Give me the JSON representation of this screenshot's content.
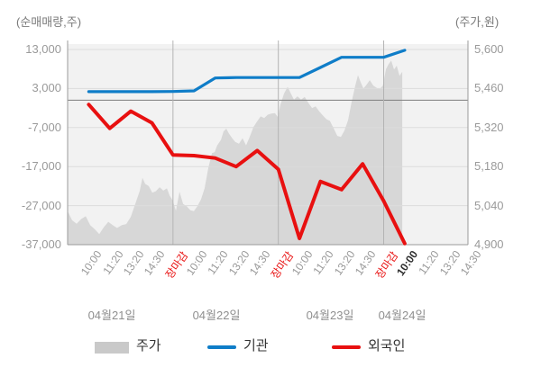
{
  "chart_data": {
    "type": "mixed",
    "title": "",
    "left_axis": {
      "title": "(순매매량,주)",
      "unit": "주",
      "range": [
        -37000,
        13000
      ],
      "ticks": [
        13000,
        3000,
        -7000,
        -17000,
        -27000,
        -37000
      ],
      "tick_labels": [
        "13,000",
        "3,000",
        "-7,000",
        "-17,000",
        "-27,000",
        "-37,000"
      ],
      "zero_line": 0
    },
    "right_axis": {
      "title": "(주가,원)",
      "unit": "원",
      "range": [
        4900,
        5600
      ],
      "ticks": [
        5600,
        5460,
        5320,
        5180,
        5040,
        4900
      ],
      "tick_labels": [
        "5,600",
        "5,460",
        "5,320",
        "5,180",
        "5,040",
        "4,900"
      ]
    },
    "x_axis": {
      "close_label": "장마감",
      "current_time": {
        "day_index": 3,
        "time_index": 0
      },
      "days": [
        {
          "date": "04월21일",
          "times": [
            "10:00",
            "11:20",
            "13:20",
            "14:30",
            "장마감"
          ]
        },
        {
          "date": "04월22일",
          "times": [
            "10:00",
            "11:20",
            "13:20",
            "14:30",
            "장마감"
          ]
        },
        {
          "date": "04월23일",
          "times": [
            "10:00",
            "11:20",
            "13:20",
            "14:30",
            "장마감"
          ]
        },
        {
          "date": "04월24일",
          "times": [
            "10:00",
            "11:20",
            "13:20",
            "14:30"
          ]
        }
      ]
    },
    "series": [
      {
        "name": "주가",
        "type": "area",
        "axis": "right",
        "color": "#d7d7d7",
        "points": [
          [
            0,
            5020
          ],
          [
            0.21,
            4988
          ],
          [
            0.43,
            4975
          ],
          [
            0.64,
            4992
          ],
          [
            0.86,
            5002
          ],
          [
            1.07,
            4970
          ],
          [
            1.28,
            4956
          ],
          [
            1.5,
            4938
          ],
          [
            1.71,
            4962
          ],
          [
            1.93,
            4982
          ],
          [
            2.14,
            4970
          ],
          [
            2.35,
            4960
          ],
          [
            2.57,
            4970
          ],
          [
            2.78,
            4974
          ],
          [
            3,
            5000
          ],
          [
            3.21,
            5046
          ],
          [
            3.42,
            5092
          ],
          [
            3.55,
            5140
          ],
          [
            3.68,
            5118
          ],
          [
            3.85,
            5110
          ],
          [
            4.02,
            5086
          ],
          [
            4.19,
            5092
          ],
          [
            4.37,
            5106
          ],
          [
            4.54,
            5094
          ],
          [
            4.71,
            5102
          ],
          [
            4.84,
            5076
          ],
          [
            4.99,
            5058
          ],
          [
            5.14,
            5022
          ],
          [
            5.31,
            5090
          ],
          [
            5.48,
            5046
          ],
          [
            5.65,
            5038
          ],
          [
            5.82,
            5024
          ],
          [
            5.99,
            5020
          ],
          [
            6.16,
            5038
          ],
          [
            6.33,
            5062
          ],
          [
            6.5,
            5102
          ],
          [
            6.68,
            5176
          ],
          [
            6.85,
            5228
          ],
          [
            6.98,
            5232
          ],
          [
            7.1,
            5256
          ],
          [
            7.28,
            5276
          ],
          [
            7.4,
            5306
          ],
          [
            7.53,
            5316
          ],
          [
            7.66,
            5298
          ],
          [
            7.83,
            5280
          ],
          [
            7.96,
            5268
          ],
          [
            8.13,
            5262
          ],
          [
            8.3,
            5282
          ],
          [
            8.47,
            5256
          ],
          [
            8.64,
            5286
          ],
          [
            8.82,
            5322
          ],
          [
            8.99,
            5342
          ],
          [
            9.16,
            5360
          ],
          [
            9.33,
            5354
          ],
          [
            9.5,
            5366
          ],
          [
            9.67,
            5370
          ],
          [
            9.84,
            5372
          ],
          [
            9.97,
            5358
          ],
          [
            10.1,
            5402
          ],
          [
            10.27,
            5442
          ],
          [
            10.44,
            5466
          ],
          [
            10.57,
            5446
          ],
          [
            10.74,
            5420
          ],
          [
            10.91,
            5432
          ],
          [
            11.08,
            5420
          ],
          [
            11.25,
            5430
          ],
          [
            11.43,
            5408
          ],
          [
            11.6,
            5390
          ],
          [
            11.77,
            5396
          ],
          [
            11.94,
            5378
          ],
          [
            12.11,
            5364
          ],
          [
            12.28,
            5350
          ],
          [
            12.45,
            5344
          ],
          [
            12.62,
            5318
          ],
          [
            12.8,
            5290
          ],
          [
            12.97,
            5286
          ],
          [
            13.14,
            5310
          ],
          [
            13.31,
            5346
          ],
          [
            13.48,
            5412
          ],
          [
            13.65,
            5470
          ],
          [
            13.78,
            5508
          ],
          [
            13.91,
            5482
          ],
          [
            14.04,
            5460
          ],
          [
            14.17,
            5472
          ],
          [
            14.34,
            5490
          ],
          [
            14.51,
            5470
          ],
          [
            14.68,
            5462
          ],
          [
            14.81,
            5458
          ],
          [
            14.96,
            5470
          ],
          [
            15.11,
            5530
          ],
          [
            15.24,
            5548
          ],
          [
            15.36,
            5560
          ],
          [
            15.49,
            5528
          ],
          [
            15.62,
            5542
          ],
          [
            15.75,
            5505
          ],
          [
            15.88,
            5520
          ]
        ]
      },
      {
        "name": "기관",
        "type": "line",
        "axis": "left",
        "color": "#0f7dc8",
        "values": [
          2200,
          2200,
          2200,
          2200,
          2250,
          2400,
          5700,
          5800,
          5800,
          5800,
          5800,
          8400,
          11000,
          11000,
          11000,
          12800
        ]
      },
      {
        "name": "외국인",
        "type": "line",
        "axis": "left",
        "color": "#e81010",
        "values": [
          -1100,
          -7200,
          -2800,
          -5800,
          -14000,
          -14200,
          -14800,
          -17000,
          -12900,
          -17700,
          -35400,
          -20800,
          -22900,
          -16300,
          -25800,
          -36700
        ]
      }
    ],
    "style": {
      "plot_bg": "#f2f2f2",
      "grid_color": "#dcdcdc",
      "zero_line_color": "#7e7e7e",
      "day_line_color": "#b4b4b4",
      "axis_color": "#9b9b9b"
    }
  },
  "legend": {
    "items": [
      {
        "label": "주가",
        "type": "area",
        "color": "#c9c9c9"
      },
      {
        "label": "기관",
        "type": "line",
        "color": "#0f7dc8"
      },
      {
        "label": "외국인",
        "type": "line",
        "color": "#e81010"
      }
    ]
  }
}
